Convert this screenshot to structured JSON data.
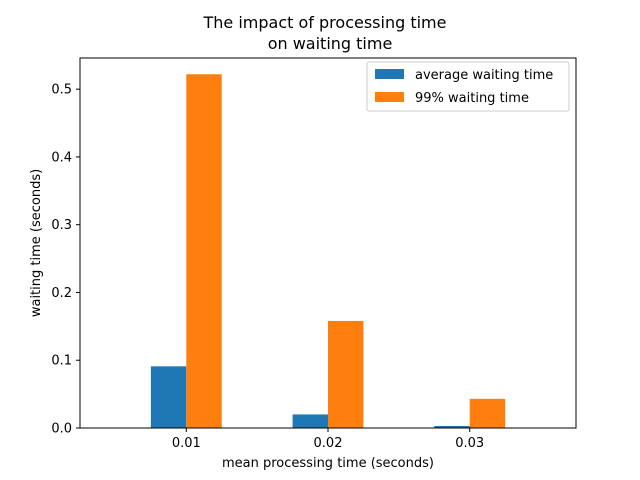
{
  "chart_data": {
    "type": "bar",
    "title_lines": [
      "The impact of processing time",
      "on waiting time"
    ],
    "xlabel": "mean processing time (seconds)",
    "ylabel": "waiting time (seconds)",
    "categories": [
      "0.01",
      "0.02",
      "0.03"
    ],
    "series": [
      {
        "name": "average waiting time",
        "color": "#1f77b4",
        "values": [
          0.091,
          0.02,
          0.003
        ]
      },
      {
        "name": "99% waiting time",
        "color": "#ff7f0e",
        "values": [
          0.522,
          0.158,
          0.043
        ]
      }
    ],
    "ylim": [
      0,
      0.546
    ],
    "yticks": [
      0.0,
      0.1,
      0.2,
      0.3,
      0.4,
      0.5
    ],
    "ytick_labels": [
      "0.0",
      "0.1",
      "0.2",
      "0.3",
      "0.4",
      "0.5"
    ],
    "grid": false,
    "legend_position": "top-right"
  }
}
